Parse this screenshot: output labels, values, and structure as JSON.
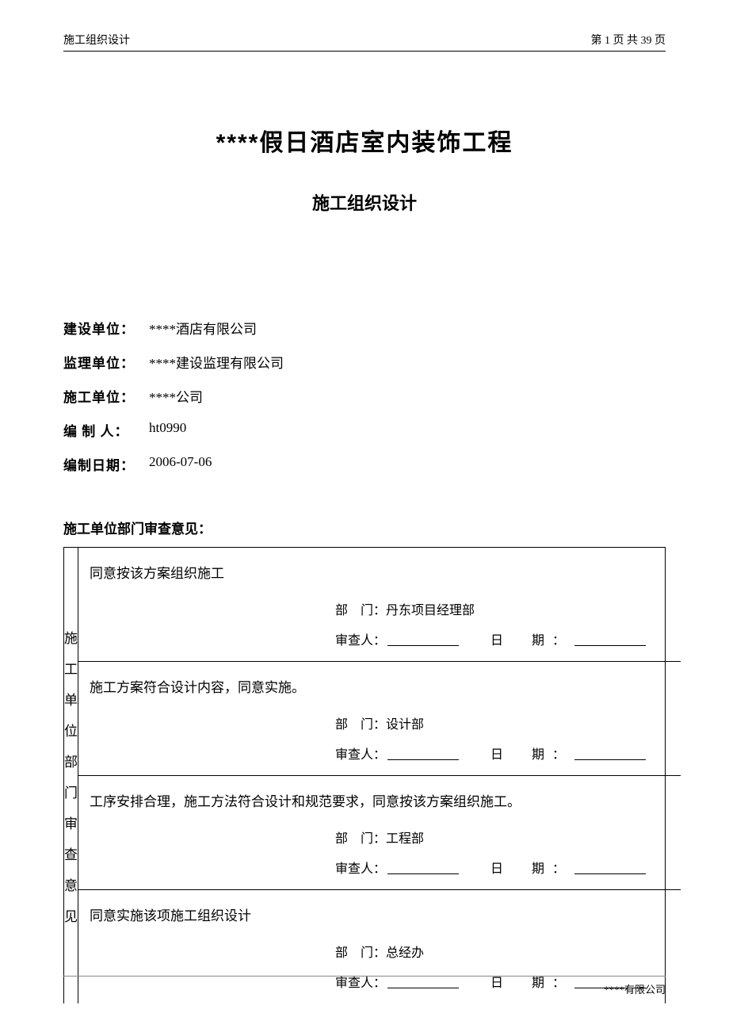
{
  "header": {
    "left": "施工组织设计",
    "right": "第 1 页 共 39 页"
  },
  "title": "****假日酒店室内装饰工程",
  "subtitle": "施工组织设计",
  "info": {
    "build_unit_label": "建设单位：",
    "build_unit": "****酒店有限公司",
    "supervise_label": "监理单位：",
    "supervise": "****建设监理有限公司",
    "construct_label": "施工单位：",
    "construct": "****公司",
    "author_label": "编 制 人：",
    "author": "ht0990",
    "date_label": "编制日期：",
    "date": "2006-07-06"
  },
  "section_title": "施工单位部门审查意见：",
  "side_label": [
    "施",
    "工",
    "单",
    "位",
    "部",
    "门",
    "审",
    "查",
    "意",
    "见"
  ],
  "reviews": [
    {
      "comment": "同意按该方案组织施工",
      "dept_label": "部　门：",
      "dept": "丹东项目经理部",
      "reviewer_label": "审查人：",
      "date_label": "日　期："
    },
    {
      "comment": "施工方案符合设计内容，同意实施。",
      "dept_label": "部　门：",
      "dept": "设计部",
      "reviewer_label": "审查人：",
      "date_label": "日　期："
    },
    {
      "comment": "工序安排合理，施工方法符合设计和规范要求，同意按该方案组织施工。",
      "dept_label": "部　门：",
      "dept": "工程部",
      "reviewer_label": "审查人：",
      "date_label": "日　期："
    },
    {
      "comment": "同意实施该项施工组织设计",
      "dept_label": "部　门：",
      "dept": "总经办",
      "reviewer_label": "审查人：",
      "date_label": "日　期："
    }
  ],
  "footer": "****有限公司",
  "colors": {
    "text": "#000000",
    "bg": "#ffffff",
    "border": "#000000",
    "footer_line": "#888888"
  },
  "typography": {
    "title_fontsize": 30,
    "subtitle_fontsize": 22,
    "body_fontsize": 17,
    "header_fontsize": 14,
    "footer_fontsize": 13
  }
}
